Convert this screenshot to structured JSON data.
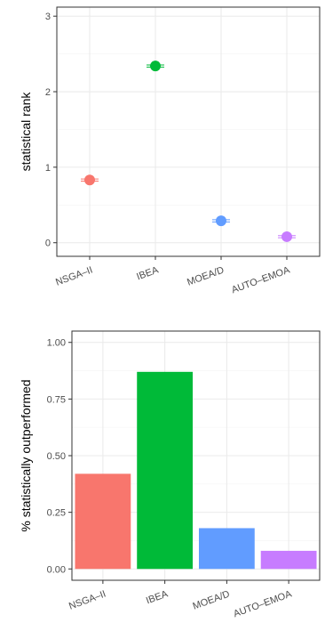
{
  "chart_data": [
    {
      "type": "scatter",
      "title": "",
      "xlabel": "",
      "ylabel": "statistical rank",
      "categories": [
        "NSGA–II",
        "IBEA",
        "MOEA/D",
        "AUTO–EMOA"
      ],
      "values": [
        0.83,
        2.34,
        0.29,
        0.08
      ],
      "yticks": [
        "0",
        "1",
        "2",
        "3"
      ],
      "ylim": [
        -0.18,
        3.12
      ],
      "colors": [
        "#F8766D",
        "#00BA38",
        "#619CFF",
        "#C77CFF"
      ],
      "grid": true,
      "legend": "none"
    },
    {
      "type": "bar",
      "title": "",
      "xlabel": "",
      "ylabel": "% statistically outperformed",
      "categories": [
        "NSGA–II",
        "IBEA",
        "MOEA/D",
        "AUTO–EMOA"
      ],
      "values": [
        0.42,
        0.87,
        0.18,
        0.08
      ],
      "yticks": [
        "0.00",
        "0.25",
        "0.50",
        "0.75",
        "1.00"
      ],
      "ylim": [
        -0.05,
        1.05
      ],
      "colors": [
        "#F8766D",
        "#00BA38",
        "#619CFF",
        "#C77CFF"
      ],
      "grid": true,
      "legend": "none"
    }
  ]
}
